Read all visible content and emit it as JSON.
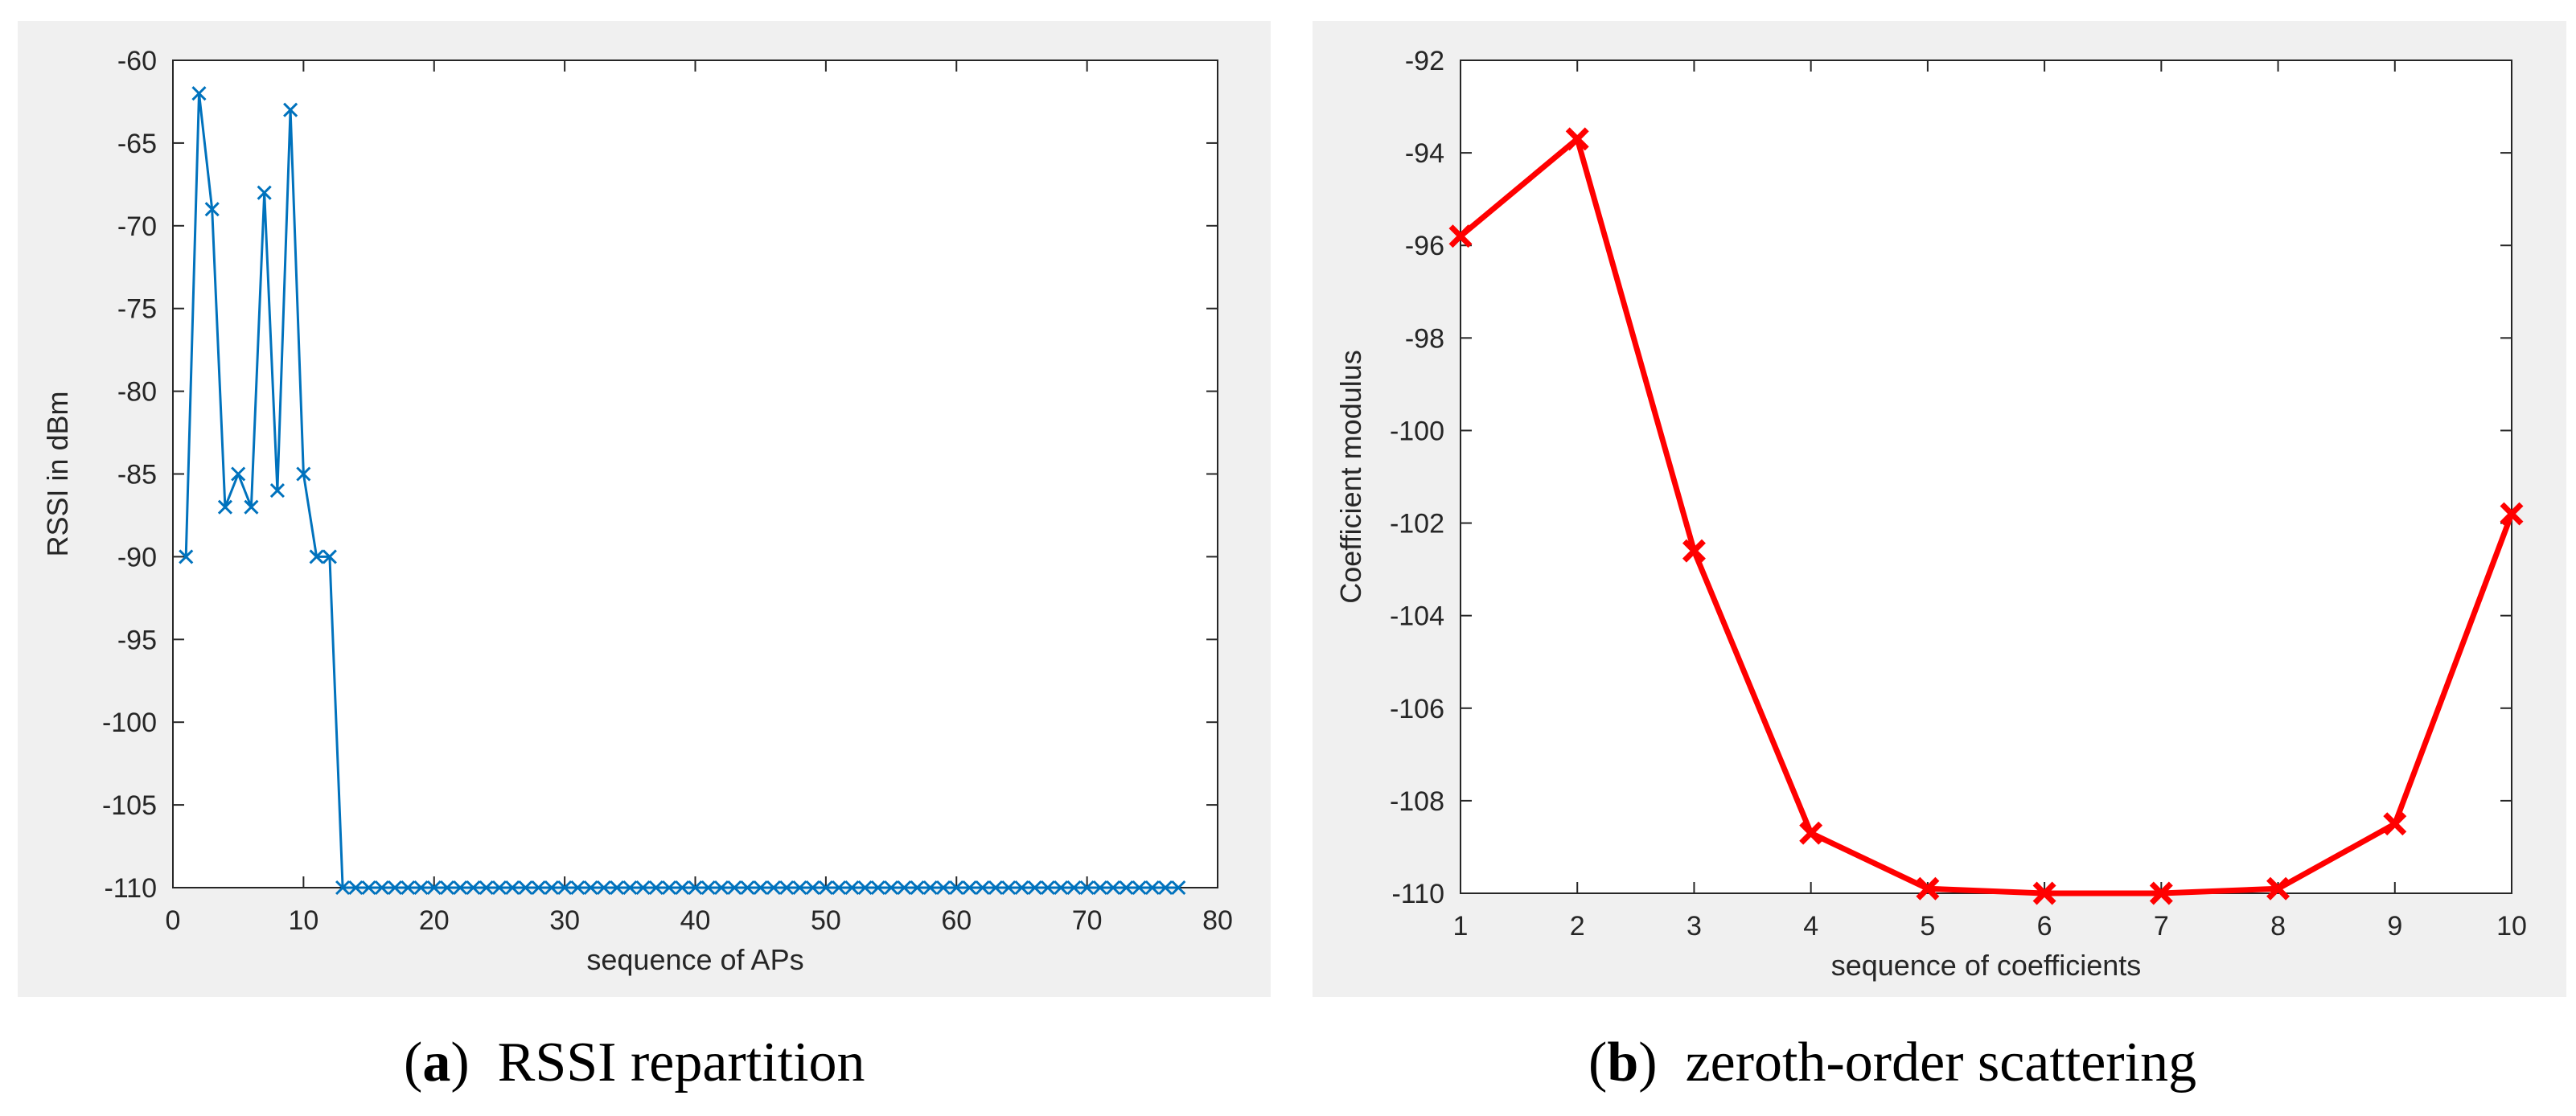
{
  "chart_data": [
    {
      "type": "line",
      "title": "",
      "xlabel": "sequence of APs",
      "ylabel": "RSSI in dBm",
      "xlim": [
        0,
        80
      ],
      "ylim": [
        -110,
        -60
      ],
      "xticks": [
        "0",
        "10",
        "20",
        "30",
        "40",
        "50",
        "60",
        "70",
        "80"
      ],
      "yticks": [
        "-60",
        "-65",
        "-70",
        "-75",
        "-80",
        "-85",
        "-90",
        "-95",
        "-100",
        "-105",
        "-110"
      ],
      "grid": false,
      "series": [
        {
          "name": "RSSI",
          "color": "#0072bd",
          "marker": "x",
          "x": [
            1,
            2,
            3,
            4,
            5,
            6,
            7,
            8,
            9,
            10,
            11,
            12,
            13,
            14,
            15,
            16,
            17,
            18,
            19,
            20,
            21,
            22,
            23,
            24,
            25,
            26,
            27,
            28,
            29,
            30,
            31,
            32,
            33,
            34,
            35,
            36,
            37,
            38,
            39,
            40,
            41,
            42,
            43,
            44,
            45,
            46,
            47,
            48,
            49,
            50,
            51,
            52,
            53,
            54,
            55,
            56,
            57,
            58,
            59,
            60,
            61,
            62,
            63,
            64,
            65,
            66,
            67,
            68,
            69,
            70,
            71,
            72,
            73,
            74,
            75,
            76,
            77
          ],
          "values": [
            -90,
            -62,
            -69,
            -87,
            -85,
            -87,
            -68,
            -86,
            -63,
            -85,
            -90,
            -90,
            -110,
            -110,
            -110,
            -110,
            -110,
            -110,
            -110,
            -110,
            -110,
            -110,
            -110,
            -110,
            -110,
            -110,
            -110,
            -110,
            -110,
            -110,
            -110,
            -110,
            -110,
            -110,
            -110,
            -110,
            -110,
            -110,
            -110,
            -110,
            -110,
            -110,
            -110,
            -110,
            -110,
            -110,
            -110,
            -110,
            -110,
            -110,
            -110,
            -110,
            -110,
            -110,
            -110,
            -110,
            -110,
            -110,
            -110,
            -110,
            -110,
            -110,
            -110,
            -110,
            -110,
            -110,
            -110,
            -110,
            -110,
            -110,
            -110,
            -110,
            -110,
            -110,
            -110,
            -110,
            -110
          ]
        }
      ]
    },
    {
      "type": "line",
      "title": "",
      "xlabel": "sequence of coefficients",
      "ylabel": "Coefficient modulus",
      "xlim": [
        1,
        10
      ],
      "ylim": [
        -110,
        -92
      ],
      "xticks": [
        "1",
        "2",
        "3",
        "4",
        "5",
        "6",
        "7",
        "8",
        "9",
        "10"
      ],
      "yticks": [
        "-92",
        "-94",
        "-96",
        "-98",
        "-100",
        "-102",
        "-104",
        "-106",
        "-108",
        "-110"
      ],
      "grid": false,
      "series": [
        {
          "name": "zeroth-order scattering",
          "color": "#ff0000",
          "marker": "x",
          "x": [
            1,
            2,
            3,
            4,
            5,
            6,
            7,
            8,
            9,
            10
          ],
          "values": [
            -95.8,
            -93.7,
            -102.6,
            -108.7,
            -109.9,
            -110.0,
            -110.0,
            -109.9,
            -108.5,
            -101.8
          ]
        }
      ]
    }
  ],
  "captions": {
    "a": {
      "letter": "a",
      "text": "RSSI repartition"
    },
    "b": {
      "letter": "b",
      "text": "zeroth-order scattering"
    }
  }
}
